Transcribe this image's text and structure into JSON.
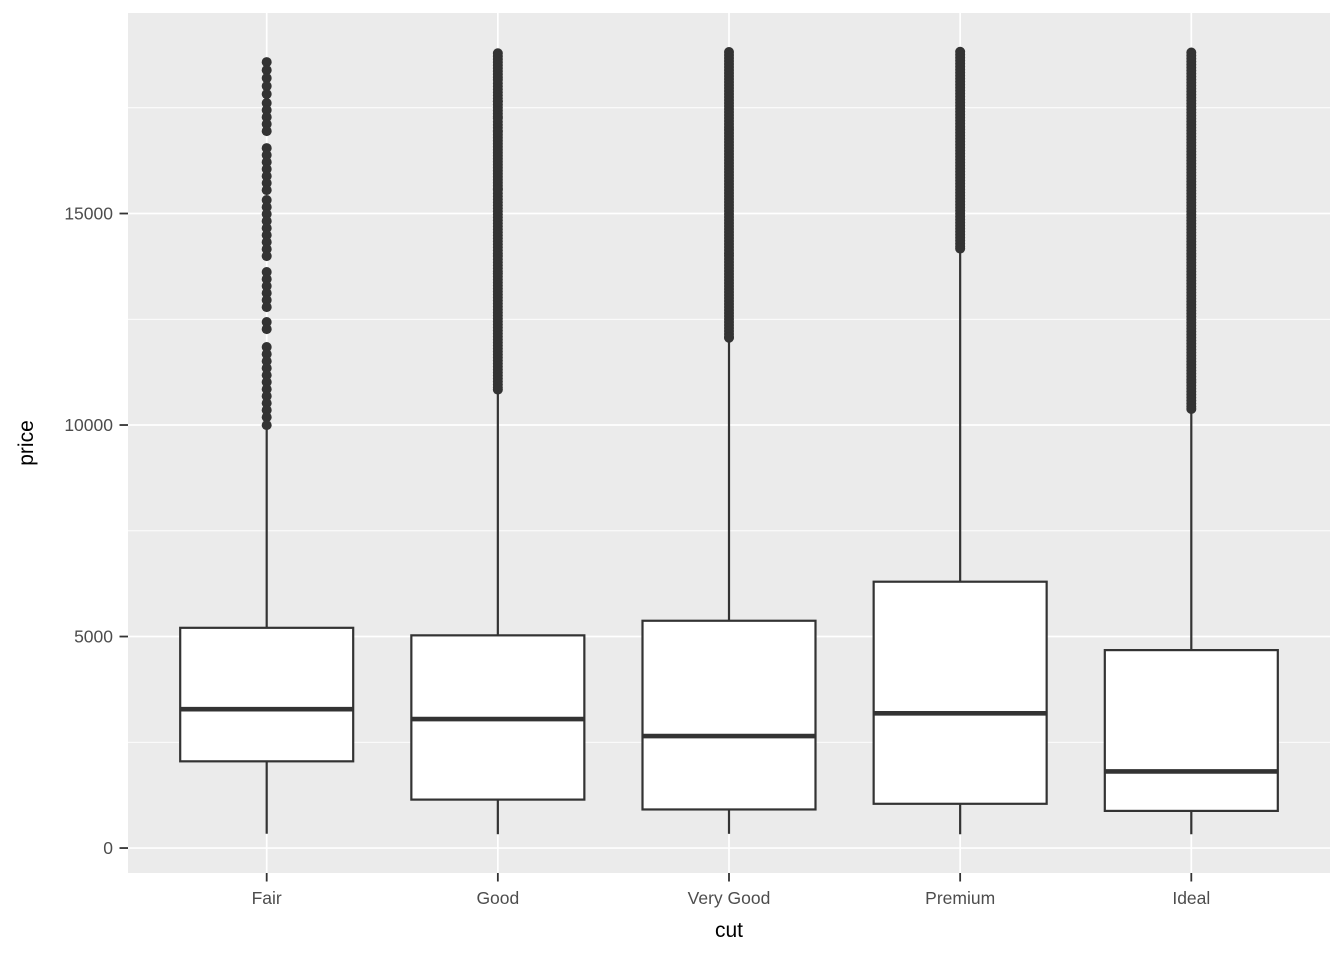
{
  "chart_data": {
    "type": "boxplot",
    "title": "",
    "xlabel": "cut",
    "ylabel": "price",
    "categories": [
      "Fair",
      "Good",
      "Very Good",
      "Premium",
      "Ideal"
    ],
    "y_ticks": [
      0,
      5000,
      10000,
      15000
    ],
    "y_tick_labels": [
      "0",
      "5000",
      "10000",
      "15000"
    ],
    "y_minor_ticks": [
      2500,
      7500,
      12500,
      17500
    ],
    "ylim": [
      -590,
      19740
    ],
    "grid": true,
    "legend": "none",
    "series": [
      {
        "category": "Fair",
        "whisker_low": 337,
        "q1": 2050,
        "median": 3282,
        "q3": 5206,
        "whisker_high": 9937,
        "outliers": [
          18580,
          18391,
          18202,
          18013,
          17824,
          17611,
          17446,
          17280,
          17115,
          16949,
          16547,
          16382,
          16216,
          16051,
          15885,
          15720,
          15554,
          15318,
          15152,
          14987,
          14821,
          14656,
          14490,
          14325,
          14159,
          13994,
          13616,
          13450,
          13285,
          13119,
          12954,
          12788,
          12434,
          12268,
          11843,
          11677,
          11511,
          11346,
          11180,
          11015,
          10849,
          10684,
          10518,
          10353,
          10187,
          9998
        ],
        "outlier_bands": []
      },
      {
        "category": "Good",
        "whisker_low": 327,
        "q1": 1145,
        "median": 3050,
        "q3": 5028,
        "whisker_high": 10820,
        "outliers": [],
        "outlier_bands": [
          [
            10837,
            13510
          ],
          [
            13580,
            15480
          ],
          [
            15560,
            16860
          ],
          [
            16930,
            17170
          ],
          [
            17250,
            17570
          ],
          [
            17650,
            18080
          ],
          [
            18160,
            18788
          ]
        ]
      },
      {
        "category": "Very Good",
        "whisker_low": 336,
        "q1": 912,
        "median": 2648,
        "q3": 5373,
        "whisker_high": 12057,
        "outliers": [],
        "outlier_bands": [
          [
            12065,
            18818
          ]
        ]
      },
      {
        "category": "Premium",
        "whisker_low": 326,
        "q1": 1046,
        "median": 3185,
        "q3": 6296,
        "whisker_high": 14160,
        "outliers": [],
        "outlier_bands": [
          [
            14170,
            18823
          ]
        ]
      },
      {
        "category": "Ideal",
        "whisker_low": 326,
        "q1": 878,
        "median": 1810,
        "q3": 4679,
        "whisker_high": 10372,
        "outliers": [],
        "outlier_bands": [
          [
            10380,
            18806
          ]
        ]
      }
    ],
    "colors": {
      "panel_background": "#EBEBEB",
      "gridline": "#FFFFFF",
      "box_fill": "#FFFFFF",
      "box_line": "#333333",
      "outlier_dot": "#333333",
      "axis_tick": "#333333",
      "axis_text": "#4D4D4D",
      "axis_title": "#000000",
      "figure_background": "#FFFFFF"
    }
  }
}
